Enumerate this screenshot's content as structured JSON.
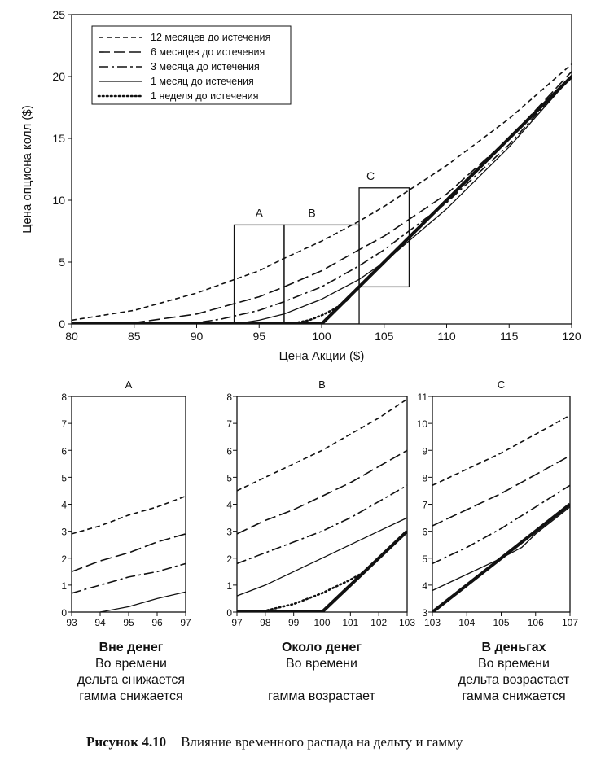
{
  "legend_items": [
    {
      "label": "12 месяцев до истечения",
      "dash": "6,4",
      "width": 1.6
    },
    {
      "label": "6 месяцев до истечения",
      "dash": "14,5",
      "width": 1.6
    },
    {
      "label": "3 месяца до истечения",
      "dash": "12,4,3,4",
      "width": 1.6
    },
    {
      "label": "1 месяц до истечения",
      "dash": "",
      "width": 1.3
    },
    {
      "label": "1 неделя до истечения",
      "dash": "1.5,3.5",
      "width": 2.6
    }
  ],
  "chart_data": [
    {
      "type": "line",
      "xlabel": "Цена Акции ($)",
      "ylabel": "Цена опциона колл ($)",
      "xlim": [
        80,
        120
      ],
      "ylim": [
        0,
        25
      ],
      "xticks": [
        80,
        85,
        90,
        95,
        100,
        105,
        110,
        115,
        120
      ],
      "yticks": [
        0,
        5,
        10,
        15,
        20,
        25
      ],
      "intrinsic_value": {
        "x": [
          80,
          100,
          120
        ],
        "y": [
          0,
          0,
          20
        ]
      },
      "series": [
        {
          "name": "12 месяцев до истечения",
          "x": [
            80,
            85,
            90,
            95,
            97,
            100,
            103,
            105,
            110,
            115,
            120
          ],
          "y": [
            0.3,
            1.1,
            2.5,
            4.3,
            5.3,
            6.7,
            8.3,
            9.5,
            12.8,
            16.6,
            21.0
          ]
        },
        {
          "name": "6 месяцев до истечения",
          "x": [
            80,
            85,
            90,
            95,
            97,
            100,
            103,
            105,
            110,
            115,
            120
          ],
          "y": [
            0.0,
            0.1,
            0.8,
            2.2,
            3.0,
            4.3,
            6.0,
            7.1,
            10.5,
            15.0,
            20.4
          ]
        },
        {
          "name": "3 месяца до истечения",
          "x": [
            80,
            85,
            90,
            92,
            95,
            97,
            100,
            103,
            105,
            110,
            115,
            120
          ],
          "y": [
            0.0,
            0.0,
            0.1,
            0.4,
            1.1,
            1.8,
            3.0,
            4.7,
            6.0,
            9.8,
            14.5,
            20.1
          ]
        },
        {
          "name": "1 месяц до истечения",
          "x": [
            93,
            95,
            97,
            100,
            103,
            105,
            110,
            115,
            120
          ],
          "y": [
            0.0,
            0.3,
            0.8,
            2.0,
            3.6,
            5.0,
            9.3,
            14.3,
            20.0
          ]
        },
        {
          "name": "1 неделя до истечения",
          "x": [
            97.5,
            99,
            100,
            101,
            102,
            103
          ],
          "y": [
            0.0,
            0.3,
            0.7,
            1.2,
            1.9,
            3.0
          ]
        }
      ],
      "annotations": [
        {
          "label": "A",
          "x": [
            93,
            97
          ],
          "y": [
            0,
            8
          ]
        },
        {
          "label": "B",
          "x": [
            97,
            103
          ],
          "y": [
            0,
            8
          ]
        },
        {
          "label": "C",
          "x": [
            103,
            107
          ],
          "y": [
            3,
            11
          ]
        }
      ]
    },
    {
      "type": "line",
      "title": "A",
      "xlim": [
        93,
        97
      ],
      "ylim": [
        0,
        8
      ],
      "xticks": [
        93,
        94,
        95,
        96,
        97
      ],
      "yticks": [
        0,
        1,
        2,
        3,
        4,
        5,
        6,
        7,
        8
      ],
      "series": [
        {
          "name": "12 месяцев до истечения",
          "x": [
            93,
            94,
            95,
            96,
            97
          ],
          "y": [
            2.9,
            3.2,
            3.6,
            3.9,
            4.3
          ]
        },
        {
          "name": "6 месяцев до истечения",
          "x": [
            93,
            94,
            95,
            96,
            97
          ],
          "y": [
            1.5,
            1.9,
            2.2,
            2.6,
            2.9
          ]
        },
        {
          "name": "3 месяца до истечения",
          "x": [
            93,
            94,
            95,
            96,
            97
          ],
          "y": [
            0.7,
            1.0,
            1.3,
            1.5,
            1.8
          ]
        },
        {
          "name": "1 месяц до истечения",
          "x": [
            94,
            95,
            96,
            97
          ],
          "y": [
            0.0,
            0.2,
            0.5,
            0.75
          ]
        }
      ]
    },
    {
      "type": "line",
      "title": "B",
      "xlim": [
        97,
        103
      ],
      "ylim": [
        0,
        8
      ],
      "xticks": [
        97,
        98,
        99,
        100,
        101,
        102,
        103
      ],
      "yticks": [
        0,
        1,
        2,
        3,
        4,
        5,
        6,
        7,
        8
      ],
      "intrinsic_value": {
        "x": [
          97,
          100,
          103
        ],
        "y": [
          0,
          0,
          3
        ]
      },
      "series": [
        {
          "name": "12 месяцев до истечения",
          "x": [
            97,
            98,
            99,
            100,
            101,
            102,
            103
          ],
          "y": [
            4.5,
            5.0,
            5.5,
            6.0,
            6.6,
            7.2,
            7.9
          ]
        },
        {
          "name": "6 месяцев до истечения",
          "x": [
            97,
            98,
            99,
            100,
            101,
            102,
            103
          ],
          "y": [
            2.9,
            3.4,
            3.8,
            4.3,
            4.8,
            5.4,
            6.0
          ]
        },
        {
          "name": "3 месяца до истечения",
          "x": [
            97,
            98,
            99,
            100,
            101,
            102,
            103
          ],
          "y": [
            1.8,
            2.2,
            2.6,
            3.0,
            3.5,
            4.1,
            4.7
          ]
        },
        {
          "name": "1 месяц до истечения",
          "x": [
            97,
            98,
            99,
            100,
            101,
            102,
            103
          ],
          "y": [
            0.6,
            1.0,
            1.5,
            2.0,
            2.5,
            3.0,
            3.5
          ]
        },
        {
          "name": "1 неделя до истечения",
          "x": [
            97.5,
            98,
            99,
            100,
            101,
            101.5
          ],
          "y": [
            0.0,
            0.05,
            0.3,
            0.7,
            1.2,
            1.5
          ]
        }
      ]
    },
    {
      "type": "line",
      "title": "C",
      "xlim": [
        103,
        107
      ],
      "ylim": [
        3,
        11
      ],
      "xticks": [
        103,
        104,
        105,
        106,
        107
      ],
      "yticks": [
        3,
        4,
        5,
        6,
        7,
        8,
        9,
        10,
        11
      ],
      "intrinsic_value": {
        "x": [
          103,
          107
        ],
        "y": [
          3,
          7
        ]
      },
      "series": [
        {
          "name": "12 месяцев до истечения",
          "x": [
            103,
            104,
            105,
            106,
            107
          ],
          "y": [
            7.7,
            8.3,
            8.9,
            9.6,
            10.3
          ]
        },
        {
          "name": "6 месяцев до истечения",
          "x": [
            103,
            104,
            105,
            106,
            107
          ],
          "y": [
            6.2,
            6.8,
            7.4,
            8.1,
            8.8
          ]
        },
        {
          "name": "3 месяца до истечения",
          "x": [
            103,
            104,
            105,
            106,
            107
          ],
          "y": [
            4.8,
            5.4,
            6.1,
            6.9,
            7.7
          ]
        },
        {
          "name": "1 месяц до истечения",
          "x": [
            103,
            104,
            105,
            105.6,
            106,
            107
          ],
          "y": [
            3.8,
            4.4,
            5.0,
            5.4,
            5.9,
            6.9
          ]
        }
      ]
    }
  ],
  "captions": [
    {
      "title": "Вне денег",
      "lines": [
        "Во времени",
        "дельта снижается",
        "гамма снижается"
      ]
    },
    {
      "title": "Около денег",
      "lines": [
        "Во времени",
        "",
        "гамма возрастает"
      ]
    },
    {
      "title": "В деньгах",
      "lines": [
        "Во времени",
        "дельта возрастает",
        "гамма снижается"
      ]
    }
  ],
  "figure_caption": {
    "number": "Рисунок 4.10",
    "text": "Влияние временного распада на дельту и гамму"
  }
}
